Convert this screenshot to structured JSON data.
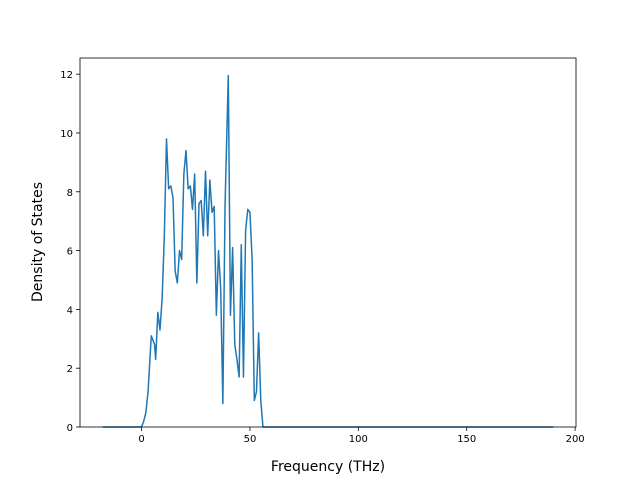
{
  "chart_data": {
    "type": "line",
    "x_label": "Frequency (THz)",
    "y_label": "Density of States",
    "x": [
      -18,
      0,
      1,
      2,
      3,
      4,
      4.5,
      6,
      6.5,
      7.5,
      8.5,
      9.5,
      10.5,
      11.5,
      12.5,
      13.5,
      14.5,
      15.5,
      16.5,
      17.5,
      18.5,
      19.5,
      20.5,
      21.5,
      22.5,
      23.5,
      24.5,
      25.5,
      26.5,
      27.5,
      28.5,
      29.5,
      30.5,
      31.5,
      32.5,
      33.5,
      34.5,
      35.5,
      36.5,
      37.5,
      38.5,
      40,
      41,
      42,
      43,
      44,
      45,
      46,
      47,
      48,
      49,
      50,
      51,
      52,
      53,
      54,
      55,
      56,
      190
    ],
    "series": [
      {
        "color": "#1f77b4",
        "values": [
          0,
          0,
          0.2,
          0.5,
          1.2,
          2.5,
          3.1,
          2.8,
          2.3,
          3.9,
          3.3,
          4.4,
          6.5,
          9.8,
          8.1,
          8.2,
          7.8,
          5.3,
          4.9,
          6.0,
          5.7,
          8.6,
          9.4,
          8.1,
          8.2,
          7.4,
          8.6,
          4.9,
          7.6,
          7.7,
          6.5,
          8.7,
          6.5,
          8.4,
          7.3,
          7.5,
          3.8,
          6.0,
          4.7,
          0.8,
          7.5,
          11.95,
          3.8,
          6.1,
          2.8,
          2.3,
          1.7,
          6.2,
          1.7,
          6.7,
          7.4,
          7.3,
          5.7,
          0.9,
          1.2,
          3.2,
          0.9,
          0,
          0
        ]
      }
    ],
    "xlim": [
      -28.4,
      200.4
    ],
    "ylim": [
      0,
      12.55
    ],
    "xticks": [
      0,
      50,
      100,
      150,
      200
    ],
    "yticks": [
      0,
      2,
      4,
      6,
      8,
      10,
      12
    ]
  }
}
